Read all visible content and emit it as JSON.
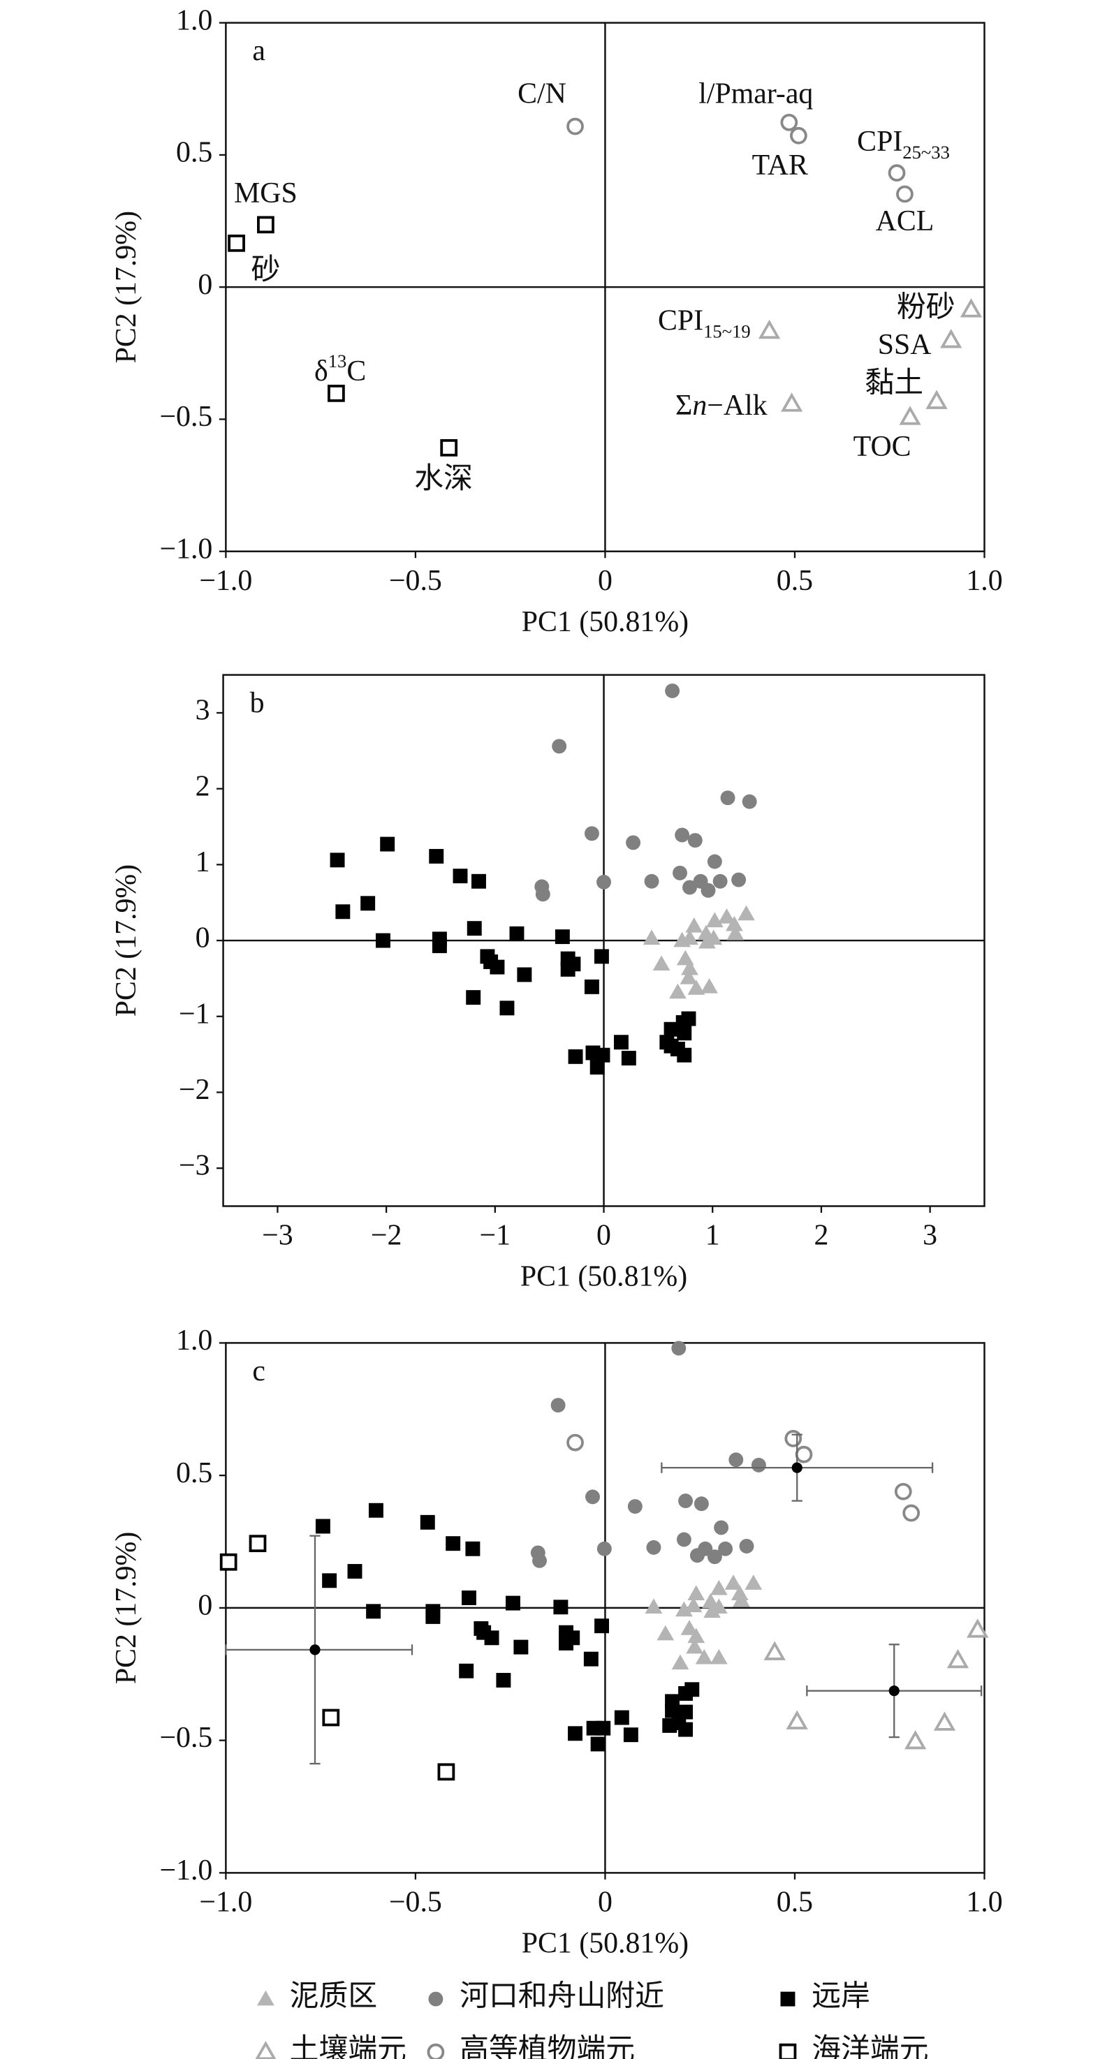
{
  "chart_data": [
    {
      "type": "scatter",
      "title": "a",
      "xlabel": "PC1 (50.81%)",
      "ylabel": "PC2 (17.9%)",
      "xlim": [
        -1,
        1
      ],
      "ylim": [
        -1,
        1
      ],
      "xticks": [
        {
          "value": -1,
          "label": "−1.0"
        },
        {
          "value": -0.5,
          "label": "−0.5"
        },
        0,
        0.5,
        {
          "value": 1,
          "label": "1.0"
        }
      ],
      "yticks": [
        {
          "value": -1,
          "label": "−1.0"
        },
        {
          "value": -0.5,
          "label": "−0.5"
        },
        0,
        0.5,
        {
          "value": 1,
          "label": "1.0"
        }
      ],
      "series": [
        {
          "marker": "square",
          "filled": false,
          "color": "#000000",
          "x": [
            -0.895,
            -0.972,
            -0.709,
            -0.412
          ],
          "y": [
            0.236,
            0.166,
            -0.402,
            -0.608
          ],
          "labels": [
            [
              "MGS"
            ],
            [
              "砂"
            ],
            [
              "δ",
              {
                "sup": "13"
              },
              "C"
            ],
            [
              "水深"
            ]
          ]
        },
        {
          "marker": "circle",
          "filled": false,
          "color": "#888888",
          "x": [
            -0.079,
            0.485,
            0.51,
            0.769,
            0.79
          ],
          "y": [
            0.608,
            0.623,
            0.573,
            0.432,
            0.352
          ],
          "labels": [
            [
              "C/N"
            ],
            [
              "l/Pmar-aq"
            ],
            [
              "TAR"
            ],
            [
              "CPI",
              {
                "sub": "25~33"
              }
            ],
            [
              "ACL"
            ]
          ]
        },
        {
          "marker": "triangle",
          "filled": false,
          "color": "#aaaaaa",
          "x": [
            0.965,
            0.912,
            0.874,
            0.804,
            0.433,
            0.492
          ],
          "y": [
            -0.085,
            -0.201,
            -0.432,
            -0.492,
            -0.166,
            -0.442
          ],
          "labels": [
            [
              "粉砂"
            ],
            [
              "SSA"
            ],
            [
              "黏土"
            ],
            [
              "TOC"
            ],
            [
              "CPI",
              {
                "sub": "15~19"
              }
            ],
            [
              "Σ",
              {
                "i": "n"
              },
              "−Alk"
            ]
          ]
        }
      ]
    },
    {
      "type": "scatter",
      "title": "b",
      "xlabel": "PC1 (50.81%)",
      "ylabel": "PC2 (17.9%)",
      "xlim": [
        -3.5,
        3.5
      ],
      "ylim": [
        -3.5,
        3.5
      ],
      "xticks": [
        {
          "value": -3,
          "label": "−3"
        },
        {
          "value": -2,
          "label": "−2"
        },
        {
          "value": -1,
          "label": "−1"
        },
        0,
        1,
        2,
        3
      ],
      "yticks": [
        {
          "value": -3,
          "label": "−3"
        },
        {
          "value": -2,
          "label": "−2"
        },
        {
          "value": -1,
          "label": "−1"
        },
        0,
        1,
        2,
        3
      ],
      "series": [
        {
          "marker": "triangle",
          "filled": true,
          "color": "#b4b4b4",
          "x": [
            0.44,
            0.83,
            1.02,
            1.13,
            1.31,
            1.2,
            0.72,
            0.79,
            0.95,
            1.01,
            0.94,
            0.53,
            0.75,
            0.68,
            0.85,
            0.97,
            0.78,
            0.79,
            1.21
          ],
          "y": [
            0.03,
            0.19,
            0.26,
            0.31,
            0.35,
            0.21,
            0,
            0.03,
            -0.02,
            0.03,
            0.09,
            -0.31,
            -0.24,
            -0.68,
            -0.63,
            -0.61,
            -0.49,
            -0.37,
            0.09
          ]
        },
        {
          "marker": "circle",
          "filled": true,
          "color": "#808080",
          "x": [
            0.63,
            -0.41,
            1.14,
            1.34,
            -0.11,
            0.27,
            0.72,
            0.84,
            -0.57,
            -0.56,
            0,
            0.44,
            0.7,
            1.02,
            0.89,
            0.79,
            0.96,
            1.07,
            1.24
          ],
          "y": [
            3.29,
            2.56,
            1.88,
            1.83,
            1.41,
            1.29,
            1.39,
            1.32,
            0.71,
            0.61,
            0.77,
            0.78,
            0.89,
            1.04,
            0.78,
            0.7,
            0.66,
            0.78,
            0.8
          ]
        },
        {
          "marker": "square",
          "filled": true,
          "color": "#000000",
          "x": [
            -2.45,
            -2.4,
            -1.99,
            -2.17,
            -2.03,
            -1.54,
            -1.51,
            -1.51,
            -1.32,
            -1.15,
            -1.19,
            -1.2,
            -1.04,
            -0.98,
            -1.07,
            -0.8,
            -0.73,
            -0.89,
            -0.38,
            -0.33,
            -0.28,
            -0.33,
            -0.11,
            -0.02,
            -0.26,
            -0.1,
            -0.06,
            -0.01,
            0.16,
            0.23,
            0.58,
            0.62,
            0.73,
            0.78,
            0.62,
            0.74,
            0.74,
            0.68
          ],
          "y": [
            1.06,
            0.38,
            1.27,
            0.49,
            0,
            1.11,
            0.02,
            -0.07,
            0.85,
            0.78,
            0.16,
            -0.75,
            -0.28,
            -0.35,
            -0.21,
            0.09,
            -0.45,
            -0.89,
            0.05,
            -0.38,
            -0.31,
            -0.24,
            -0.61,
            -0.21,
            -1.53,
            -1.48,
            -1.67,
            -1.51,
            -1.34,
            -1.55,
            -1.34,
            -1.17,
            -1.08,
            -1.03,
            -1.39,
            -1.51,
            -1.22,
            -1.43
          ]
        }
      ]
    },
    {
      "type": "scatter",
      "title": "c",
      "xlabel": "PC1 (50.81%)",
      "ylabel": "PC2 (17.9%)",
      "xlim": [
        -1,
        1
      ],
      "ylim": [
        -1,
        1
      ],
      "xticks": [
        {
          "value": -1,
          "label": "−1.0"
        },
        {
          "value": -0.5,
          "label": "−0.5"
        },
        0,
        0.5,
        {
          "value": 1,
          "label": "1.0"
        }
      ],
      "yticks": [
        {
          "value": -1,
          "label": "−1.0"
        },
        {
          "value": -0.5,
          "label": "−0.5"
        },
        0,
        0.5,
        {
          "value": 1,
          "label": "1.0"
        }
      ],
      "series": [
        {
          "name": "泥质区",
          "marker": "triangle",
          "filled": true,
          "color": "#b4b4b4",
          "x": [
            0.128,
            0.24,
            0.3,
            0.338,
            0.391,
            0.355,
            0.208,
            0.233,
            0.282,
            0.3,
            0.278,
            0.159,
            0.222,
            0.198,
            0.261,
            0.3,
            0.236,
            0.24,
            0.359
          ],
          "y": [
            0.003,
            0.053,
            0.073,
            0.093,
            0.093,
            0.053,
            -0.008,
            0.008,
            -0.013,
            0.003,
            0.023,
            -0.098,
            -0.078,
            -0.208,
            -0.188,
            -0.188,
            -0.148,
            -0.108,
            0.028
          ]
        },
        {
          "name": "河口和舟山附近",
          "marker": "circle",
          "filled": true,
          "color": "#808080",
          "x": [
            0.194,
            -0.124,
            0.345,
            0.405,
            -0.033,
            0.079,
            0.212,
            0.254,
            -0.177,
            -0.173,
            -0.002,
            0.128,
            0.208,
            0.306,
            0.264,
            0.243,
            0.289,
            0.317,
            0.373
          ],
          "y": [
            0.98,
            0.765,
            0.559,
            0.539,
            0.419,
            0.383,
            0.404,
            0.393,
            0.208,
            0.178,
            0.223,
            0.228,
            0.258,
            0.303,
            0.223,
            0.198,
            0.193,
            0.223,
            0.233
          ]
        },
        {
          "name": "远岸",
          "marker": "square",
          "filled": true,
          "color": "#000000",
          "x": [
            -0.744,
            -0.727,
            -0.604,
            -0.66,
            -0.611,
            -0.468,
            -0.454,
            -0.454,
            -0.401,
            -0.349,
            -0.359,
            -0.366,
            -0.32,
            -0.299,
            -0.327,
            -0.243,
            -0.222,
            -0.268,
            -0.117,
            -0.103,
            -0.086,
            -0.103,
            -0.037,
            -0.009,
            -0.079,
            -0.03,
            -0.019,
            -0.005,
            0.044,
            0.068,
            0.17,
            0.177,
            0.212,
            0.229,
            0.177,
            0.212,
            0.212,
            0.194
          ],
          "y": [
            0.308,
            0.103,
            0.368,
            0.138,
            -0.013,
            0.323,
            -0.013,
            -0.033,
            0.243,
            0.223,
            0.038,
            -0.238,
            -0.093,
            -0.113,
            -0.078,
            0.018,
            -0.148,
            -0.273,
            0.003,
            -0.133,
            -0.113,
            -0.093,
            -0.193,
            -0.068,
            -0.474,
            -0.454,
            -0.514,
            -0.454,
            -0.414,
            -0.479,
            -0.444,
            -0.353,
            -0.323,
            -0.308,
            -0.388,
            -0.459,
            -0.393,
            -0.434
          ]
        },
        {
          "name": "土壤端元",
          "marker": "triangle",
          "filled": false,
          "color": "#aaaaaa",
          "x": [
            0.447,
            0.506,
            0.818,
            0.895,
            0.93,
            0.982
          ],
          "y": [
            -0.168,
            -0.429,
            -0.504,
            -0.434,
            -0.198,
            -0.083
          ]
        },
        {
          "name": "高等植物端元",
          "marker": "circle",
          "filled": false,
          "color": "#888888",
          "x": [
            -0.079,
            0.496,
            0.524,
            0.786,
            0.807
          ],
          "y": [
            0.624,
            0.639,
            0.579,
            0.439,
            0.358
          ]
        },
        {
          "name": "海洋端元",
          "marker": "square",
          "filled": false,
          "color": "#000000",
          "x": [
            -0.993,
            -0.916,
            -0.723,
            -0.419
          ],
          "y": [
            0.173,
            0.243,
            -0.414,
            -0.619
          ]
        },
        {
          "marker": "dot",
          "filled": true,
          "color": "#000000",
          "x": [
            0.506,
            0.762,
            -0.765
          ],
          "y": [
            0.529,
            -0.313,
            -0.158
          ],
          "xerr": [
            0.357,
            0.23,
            0.256
          ],
          "yerr": [
            0.125,
            0.175,
            0.43
          ]
        }
      ]
    }
  ]
}
